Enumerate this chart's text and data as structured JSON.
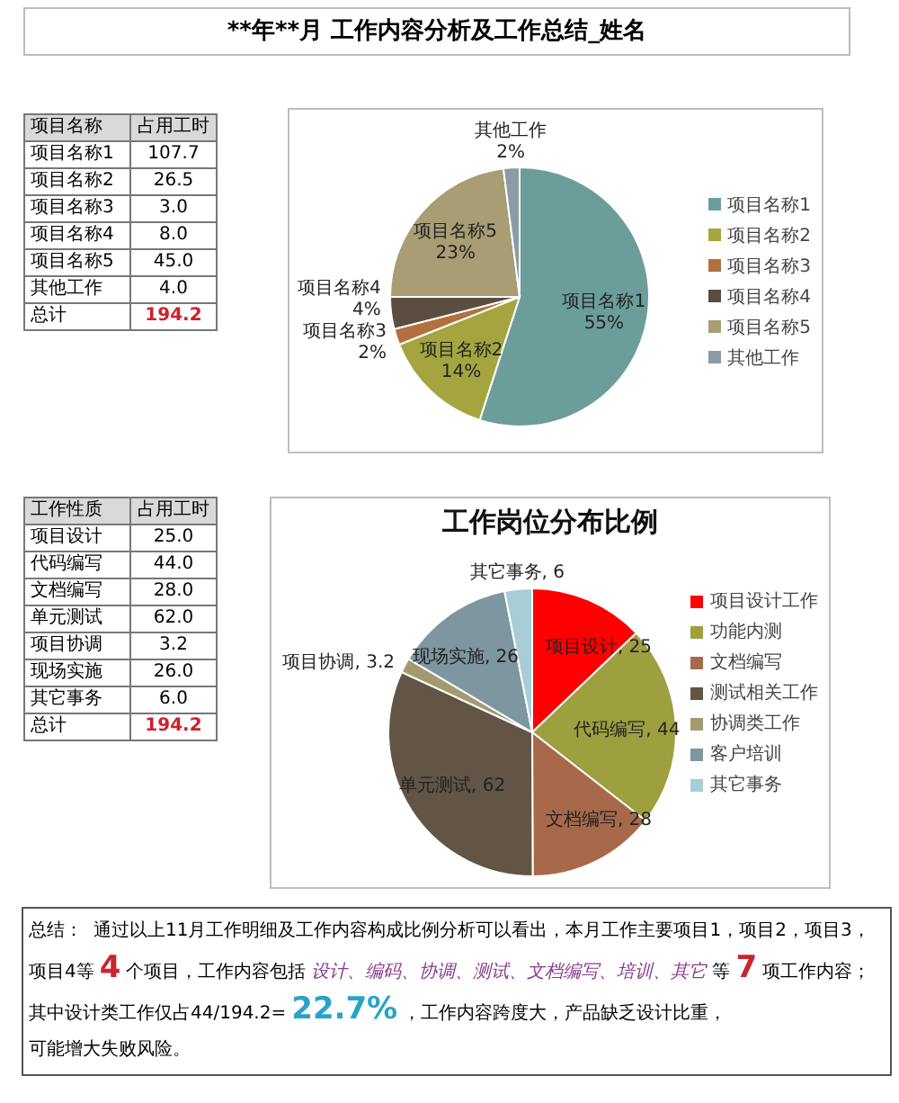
{
  "chart_data": [
    {
      "type": "other",
      "title": "**年**月 工作内容分析及工作总结_姓名"
    },
    {
      "type": "other",
      "xlabel": "项目名称",
      "ylabel": "占用工时",
      "categories": [
        "项目名称1",
        "项目名称2",
        "项目名称3",
        "项目名称4",
        "项目名称5",
        "其他工作",
        "总计"
      ],
      "value_labels": [
        "107.7",
        "26.5",
        "3.0",
        "8.0",
        "45.0",
        "4.0",
        "194.2"
      ],
      "colors": [
        "#000000",
        "#000000",
        "#000000",
        "#000000",
        "#000000",
        "#000000",
        "#d0202a"
      ]
    },
    {
      "type": "pie",
      "categories": [
        "项目名称1",
        "项目名称2",
        "项目名称3",
        "项目名称4",
        "项目名称5",
        "其他工作"
      ],
      "values": [
        55,
        14,
        2,
        4,
        23,
        2
      ],
      "colors": [
        "#6b9e9b",
        "#a5a540",
        "#b3703f",
        "#5b4d3f",
        "#a89d73",
        "#8c9aa5"
      ],
      "value_labels": [
        "项目名称1\n55%",
        "项目名称2\n14%",
        "项目名称3\n2%",
        "项目名称4\n4%",
        "项目名称5\n23%",
        "其他工作\n2%"
      ],
      "legend": "right"
    },
    {
      "type": "other",
      "xlabel": "工作性质",
      "ylabel": "占用工时",
      "categories": [
        "项目设计",
        "代码编写",
        "文档编写",
        "单元测试",
        "项目协调",
        "现场实施",
        "其它事务",
        "总计"
      ],
      "value_labels": [
        "25.0",
        "44.0",
        "28.0",
        "62.0",
        "3.2",
        "26.0",
        "6.0",
        "194.2"
      ],
      "colors": [
        "#000000",
        "#000000",
        "#000000",
        "#000000",
        "#000000",
        "#000000",
        "#000000",
        "#d0202a"
      ]
    },
    {
      "type": "pie",
      "title": "工作岗位分布比例",
      "categories": [
        "项目设计工作",
        "功能内测",
        "文档编写",
        "测试相关工作",
        "协调类工作",
        "客户培训",
        "其它事务"
      ],
      "values": [
        25,
        44,
        28,
        62,
        3.2,
        26,
        6
      ],
      "colors": [
        "#ff0000",
        "#9ea040",
        "#a8694a",
        "#625545",
        "#a39a70",
        "#7d96a0",
        "#a9cdd6"
      ],
      "value_labels": [
        "项目设计, 25",
        "代码编写, 44",
        "文档编写, 28",
        "单元测试, 62",
        "项目协调, 3.2",
        "现场实施, 26",
        "其它事务, 6"
      ],
      "legend": "right"
    },
    {
      "type": "other",
      "annotations": [
        "总结：",
        "通过以上11月工作明细及工作内容构成比例分析可以看出，",
        "本月工作主要项目1，",
        "项目2，",
        "项目3，",
        "项目4",
        "等",
        "4",
        "个",
        "项目，",
        "工作内容包括",
        "设计、编码、协调、测试、文档编写、培训、其它",
        "等",
        "7",
        "项工作内容；",
        "其中设计",
        "类工作仅占",
        "44/194.2=",
        "22.7%",
        "，工作内容跨度大，",
        "产品缺乏设计比重，",
        "可能增大失败风险。"
      ],
      "colors": [
        "#000000",
        "#000000",
        "#000000",
        "#000000",
        "#000000",
        "#000000",
        "#000000",
        "#c8262e",
        "#000000",
        "#000000",
        "#000000",
        "#8a3d8f",
        "#000000",
        "#c8262e",
        "#000000",
        "#000000",
        "#000000",
        "#000000",
        "#2aa3c9",
        "#000000",
        "#000000",
        "#000000"
      ]
    }
  ]
}
